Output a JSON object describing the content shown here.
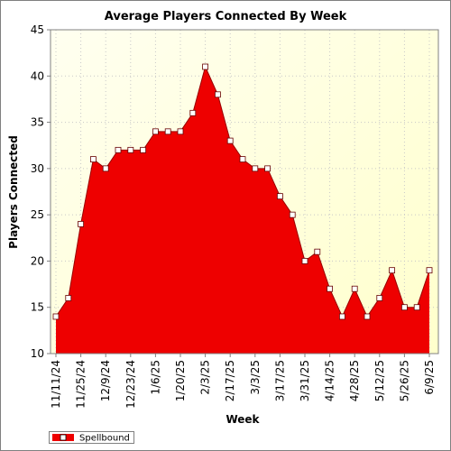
{
  "chart_data": {
    "type": "area",
    "title": "Average Players Connected By Week",
    "xlabel": "Week",
    "ylabel": "Players Connected",
    "ylim": [
      10,
      45
    ],
    "y_ticks": [
      10,
      15,
      20,
      25,
      30,
      35,
      40,
      45
    ],
    "grid": true,
    "legend_position": "bottom-left",
    "x": [
      "11/11/24",
      "11/18/24",
      "11/25/24",
      "12/2/24",
      "12/9/24",
      "12/16/24",
      "12/23/24",
      "12/30/24",
      "1/6/25",
      "1/13/25",
      "1/20/25",
      "1/27/25",
      "2/3/25",
      "2/10/25",
      "2/17/25",
      "2/24/25",
      "3/3/25",
      "3/10/25",
      "3/17/25",
      "3/24/25",
      "3/31/25",
      "4/7/25",
      "4/14/25",
      "4/21/25",
      "4/28/25",
      "5/5/25",
      "5/12/25",
      "5/19/25",
      "5/26/25",
      "6/2/25",
      "6/9/25"
    ],
    "x_tick_labels": [
      "11/11/24",
      "11/25/24",
      "12/9/24",
      "12/23/24",
      "1/6/25",
      "1/20/25",
      "2/3/25",
      "2/17/25",
      "3/3/25",
      "3/17/25",
      "3/31/25",
      "4/14/25",
      "4/28/25",
      "5/12/25",
      "5/26/25",
      "6/9/25"
    ],
    "series": [
      {
        "name": "Spellbound",
        "color": "#ee0000",
        "values": [
          14,
          16,
          24,
          31,
          30,
          32,
          32,
          32,
          34,
          34,
          34,
          36,
          41,
          38,
          33,
          31,
          30,
          30,
          27,
          25,
          20,
          21,
          17,
          14,
          17,
          14,
          16,
          19,
          15,
          15,
          19
        ]
      }
    ],
    "colors": {
      "plot_bg_top_left": "#fffff0",
      "plot_bg_bottom_right": "#ffffcc",
      "grid": "#c8c8c8",
      "marker_fill": "#ffffff"
    }
  }
}
